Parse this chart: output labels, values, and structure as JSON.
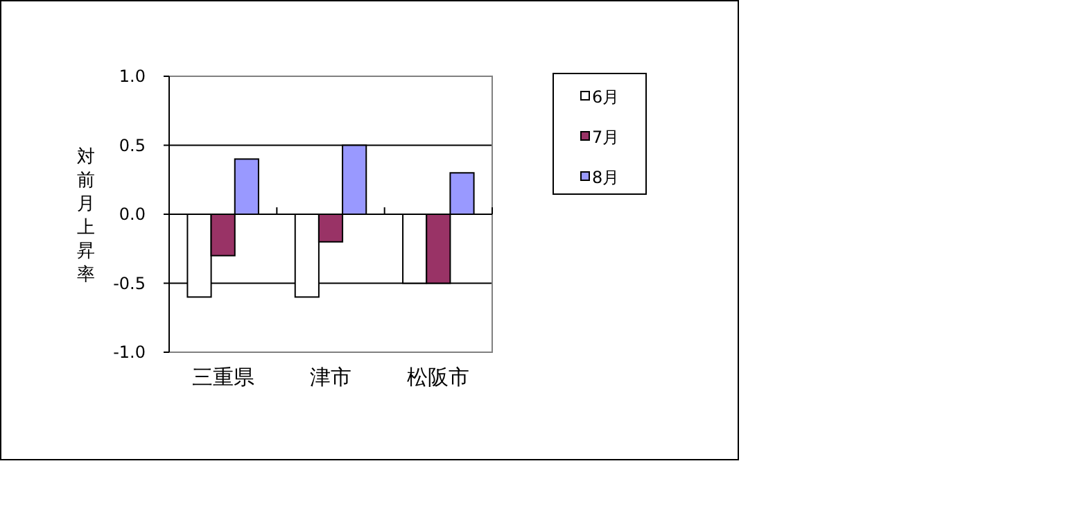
{
  "chart_data": {
    "type": "bar",
    "ylabel": "対前月上昇率",
    "categories": [
      "三重県",
      "津市",
      "松阪市"
    ],
    "series": [
      {
        "name": "6月",
        "color": "#ffffff",
        "values": [
          -0.6,
          -0.6,
          -0.5
        ]
      },
      {
        "name": "7月",
        "color": "#993366",
        "values": [
          -0.3,
          -0.2,
          -0.5
        ]
      },
      {
        "name": "8月",
        "color": "#9999ff",
        "values": [
          0.4,
          0.5,
          0.3
        ]
      }
    ],
    "ylim": [
      -1.0,
      1.0
    ],
    "yticks": [
      {
        "value": -1.0,
        "label": "-1.0"
      },
      {
        "value": -0.5,
        "label": "-0.5"
      },
      {
        "value": 0,
        "label": "0.0"
      },
      {
        "value": 0.5,
        "label": "0.5"
      },
      {
        "value": 1.0,
        "label": "1.0"
      }
    ],
    "grid": "y",
    "legend": "right"
  }
}
